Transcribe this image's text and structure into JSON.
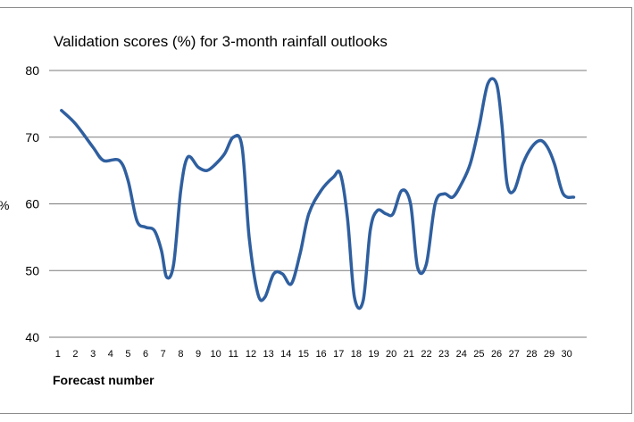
{
  "chart_data": {
    "type": "line",
    "title": "Validation scores (%)  for 3-month rainfall outlooks",
    "xlabel": "Forecast number",
    "ylabel": "%",
    "ylim": [
      40,
      80
    ],
    "yticks": [
      "40",
      "50",
      "60",
      "70",
      "80"
    ],
    "categories": [
      "1",
      "2",
      "3",
      "4",
      "5",
      "6",
      "7",
      "8",
      "9",
      "10",
      "11",
      "12",
      "13",
      "14",
      "15",
      "16",
      "17",
      "18",
      "19",
      "20",
      "21",
      "22",
      "23",
      "24",
      "25",
      "26",
      "27",
      "28",
      "29",
      "30"
    ],
    "x": [
      1.2,
      2.0,
      3.0,
      3.6,
      4.5,
      5.0,
      5.5,
      6.0,
      6.5,
      6.9,
      7.2,
      7.6,
      8.0,
      8.4,
      9.0,
      9.5,
      10.0,
      10.5,
      11.0,
      11.5,
      11.9,
      12.4,
      12.8,
      13.3,
      13.8,
      14.3,
      14.8,
      15.3,
      16.0,
      16.7,
      17.1,
      17.5,
      17.9,
      18.4,
      18.8,
      19.2,
      19.7,
      20.1,
      20.6,
      21.1,
      21.5,
      22.0,
      22.5,
      23.0,
      23.5,
      24.0,
      24.5,
      25.0,
      25.5,
      26.0,
      26.3,
      26.6,
      27.0,
      27.5,
      28.0,
      28.5,
      28.9,
      29.3,
      29.8,
      30.4
    ],
    "series": [
      {
        "color": "#2f5f9f",
        "values": [
          74.0,
          72.0,
          68.5,
          66.5,
          66.5,
          63.5,
          57.5,
          56.5,
          56.0,
          53.0,
          49.0,
          51.0,
          62.0,
          67.0,
          65.5,
          65.0,
          66.0,
          67.5,
          70.0,
          68.5,
          55.0,
          46.5,
          46.0,
          49.5,
          49.5,
          48.0,
          52.5,
          58.5,
          62.0,
          64.0,
          64.5,
          58.0,
          46.0,
          45.5,
          56.0,
          59.0,
          58.5,
          58.5,
          62.0,
          60.0,
          50.5,
          51.0,
          60.0,
          61.5,
          61.0,
          63.0,
          66.0,
          71.5,
          78.0,
          78.0,
          72.0,
          63.0,
          62.0,
          66.0,
          68.5,
          69.5,
          68.5,
          66.0,
          61.5,
          61.0
        ]
      }
    ],
    "grid": true,
    "legend": "none"
  }
}
